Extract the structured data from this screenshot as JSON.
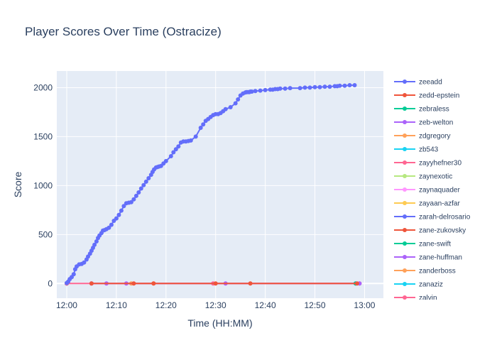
{
  "chart_data": {
    "type": "line",
    "title": "Player Scores Over Time (Ostracize)",
    "xlabel": "Time (HH:MM)",
    "ylabel": "Score",
    "x_ticks": [
      "12:00",
      "12:10",
      "12:20",
      "12:30",
      "12:40",
      "12:50",
      "13:00"
    ],
    "y_ticks": [
      0,
      500,
      1000,
      1500,
      2000
    ],
    "xlim": [
      -2.0,
      63.8
    ],
    "ylim": [
      -150,
      2170
    ],
    "grid": true,
    "legend_position": "right",
    "series": [
      {
        "name": "zeeadd",
        "color": "#636efa",
        "x": [
          0,
          0.3,
          0.6,
          1.0,
          1.4,
          1.7,
          2.0,
          2.5,
          3.0,
          3.5,
          4.0,
          4.3,
          4.7,
          5.0,
          5.3,
          5.6,
          6.0,
          6.3,
          6.6,
          7.0,
          7.3,
          7.6,
          8.0,
          8.5,
          9.0,
          9.5,
          10.0,
          10.5,
          11.0,
          11.5,
          12.0,
          12.5,
          13.0,
          13.5,
          14.0,
          14.5,
          15.0,
          15.5,
          16.0,
          16.5,
          17.0,
          17.3,
          17.6,
          18.0,
          18.3,
          18.6,
          19.0,
          19.5,
          20.0,
          21.0,
          21.5,
          22.0,
          22.5,
          23.0,
          23.5,
          24.0,
          24.5,
          25.0,
          26.0,
          27.0,
          27.5,
          28.0,
          28.5,
          29.0,
          29.5,
          30.0,
          30.5,
          31.0,
          31.5,
          32.0,
          33.0,
          34.0,
          34.5,
          35.0,
          35.5,
          36.0,
          36.2,
          36.5,
          36.8,
          37.0,
          37.3,
          38.0,
          39.0,
          40.0,
          41.0,
          41.5,
          42.0,
          42.5,
          43.0,
          44.0,
          45.0,
          47.0,
          48.0,
          49.0,
          50.0,
          51.0,
          52.0,
          53.0,
          54.0,
          54.5,
          55.0,
          56.0,
          57.0,
          58.0
        ],
        "y": [
          5,
          20,
          45,
          65,
          95,
          145,
          175,
          195,
          200,
          215,
          245,
          275,
          305,
          335,
          365,
          395,
          430,
          465,
          490,
          515,
          540,
          545,
          555,
          570,
          600,
          640,
          665,
          700,
          745,
          790,
          820,
          825,
          830,
          860,
          895,
          930,
          970,
          1005,
          1040,
          1075,
          1110,
          1140,
          1165,
          1185,
          1190,
          1195,
          1200,
          1225,
          1250,
          1300,
          1340,
          1370,
          1400,
          1440,
          1450,
          1450,
          1455,
          1460,
          1500,
          1590,
          1625,
          1660,
          1680,
          1700,
          1720,
          1730,
          1730,
          1740,
          1760,
          1780,
          1800,
          1840,
          1880,
          1920,
          1940,
          1950,
          1955,
          1955,
          1955,
          1960,
          1960,
          1965,
          1970,
          1975,
          1980,
          1980,
          1985,
          1985,
          1990,
          1990,
          1995,
          1995,
          2000,
          2000,
          2005,
          2005,
          2010,
          2010,
          2015,
          2015,
          2020,
          2020,
          2025,
          2025
        ]
      },
      {
        "name": "zedd-epstein",
        "color": "#ef553b",
        "x": [
          5,
          13.5,
          17.5,
          30,
          37,
          58.5
        ],
        "y": [
          0,
          0,
          0,
          0,
          0,
          0
        ]
      },
      {
        "name": "zebraless",
        "color": "#00cc96",
        "x": [
          58.2
        ],
        "y": [
          0
        ]
      },
      {
        "name": "zeb-welton",
        "color": "#ab63fa",
        "x": [
          5,
          8,
          12,
          32,
          59
        ],
        "y": [
          0,
          0,
          0,
          0,
          0
        ]
      },
      {
        "name": "zdgregory",
        "color": "#ffa15a",
        "x": [
          13,
          17.5
        ],
        "y": [
          0,
          0
        ]
      },
      {
        "name": "zb543",
        "color": "#19d3f3",
        "x": [
          58.2
        ],
        "y": [
          0
        ]
      },
      {
        "name": "zayyhefner30",
        "color": "#ff6692",
        "x": [
          0,
          29.5,
          59
        ],
        "y": [
          0,
          0,
          0
        ]
      },
      {
        "name": "zaynexotic",
        "color": "#b6e880",
        "x": [
          0
        ],
        "y": [
          0
        ]
      },
      {
        "name": "zaynaquader",
        "color": "#ff97ff",
        "x": [
          0
        ],
        "y": [
          0
        ]
      },
      {
        "name": "zayaan-azfar",
        "color": "#fecb52",
        "x": [
          0
        ],
        "y": [
          0
        ]
      },
      {
        "name": "zarah-delrosario",
        "color": "#636efa",
        "x": [
          0
        ],
        "y": [
          0
        ]
      },
      {
        "name": "zane-zukovsky",
        "color": "#ef553b",
        "x": [
          0
        ],
        "y": [
          0
        ]
      },
      {
        "name": "zane-swift",
        "color": "#00cc96",
        "x": [
          0
        ],
        "y": [
          0
        ]
      },
      {
        "name": "zane-huffman",
        "color": "#ab63fa",
        "x": [
          0
        ],
        "y": [
          0
        ]
      },
      {
        "name": "zanderboss",
        "color": "#ffa15a",
        "x": [
          0
        ],
        "y": [
          0
        ]
      },
      {
        "name": "zanaziz",
        "color": "#19d3f3",
        "x": [
          0
        ],
        "y": [
          0
        ]
      },
      {
        "name": "zalvin",
        "color": "#ff6692",
        "x": [
          0
        ],
        "y": [
          0
        ]
      }
    ]
  }
}
